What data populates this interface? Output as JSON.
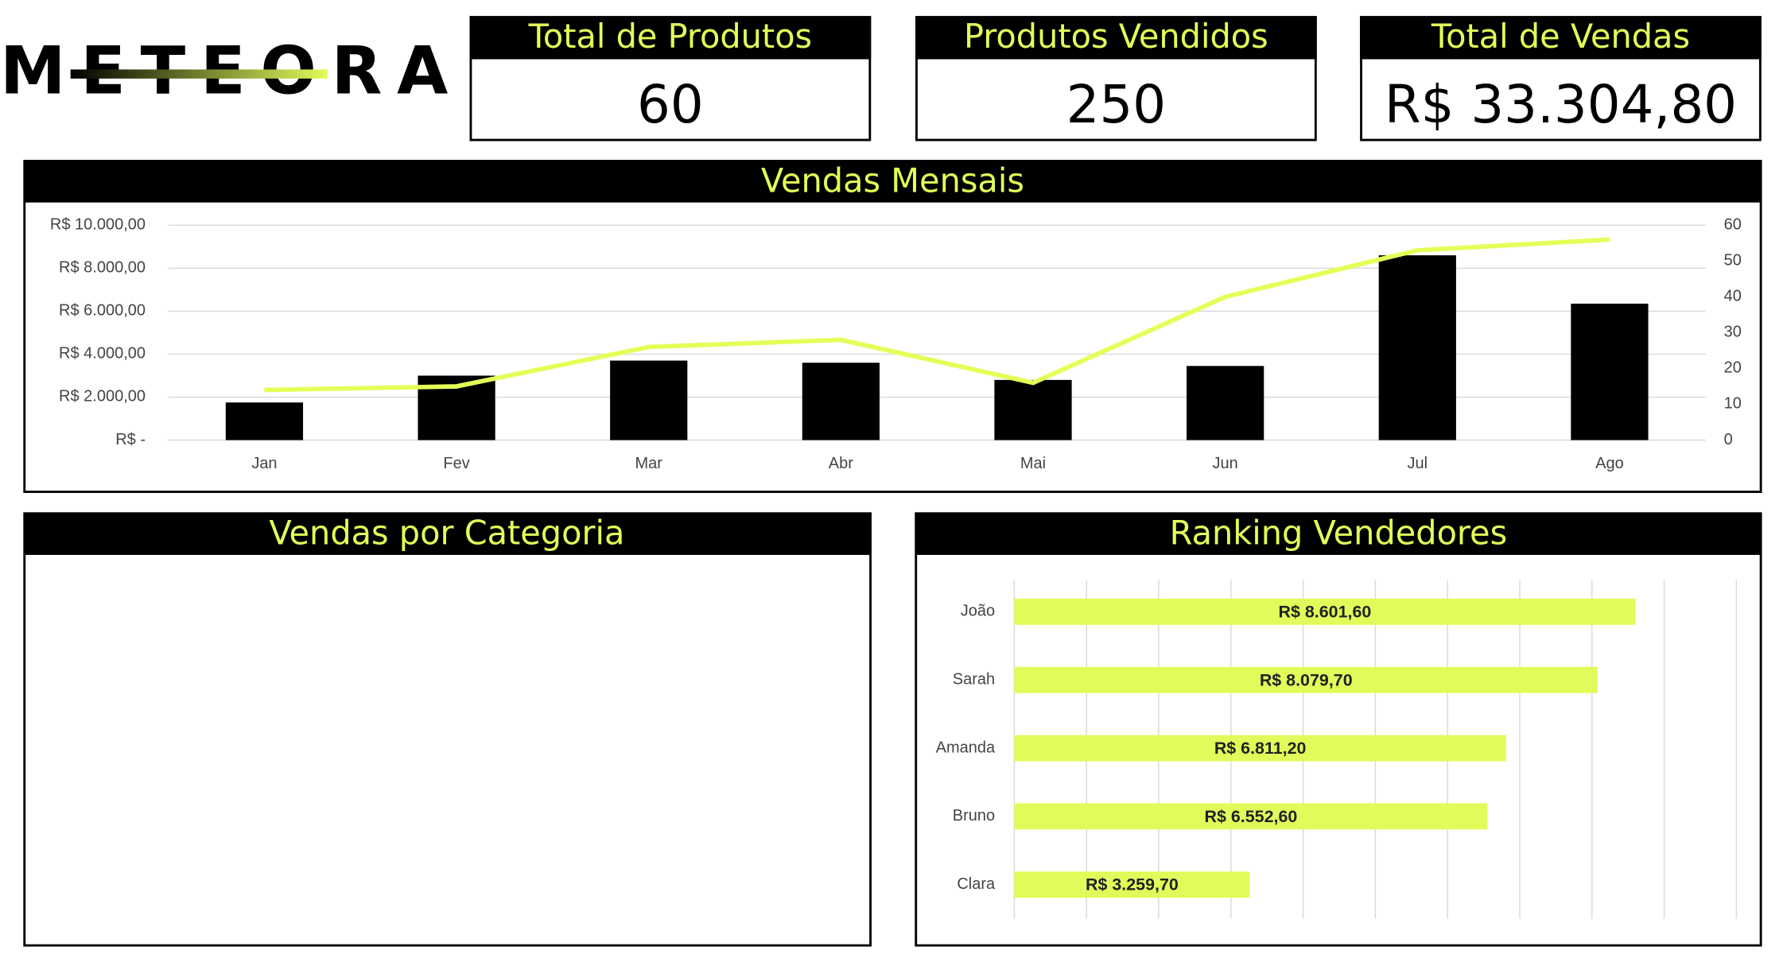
{
  "header": {
    "logo": "METEORA"
  },
  "kpis": [
    {
      "title": "Total de Produtos",
      "value": "60"
    },
    {
      "title": "Produtos Vendidos",
      "value": "250"
    },
    {
      "title": "Total de Vendas",
      "value": "R$ 33.304,80"
    }
  ],
  "panels": {
    "category_title": "Vendas por Categoria"
  },
  "chart_data": [
    {
      "type": "combo",
      "title": "Vendas Mensais",
      "categories": [
        "Jan",
        "Fev",
        "Mar",
        "Abr",
        "Mai",
        "Jun",
        "Jul",
        "Ago"
      ],
      "series": [
        {
          "type": "bar",
          "color": "#000000",
          "values": [
            1750,
            3000,
            3700,
            3600,
            2800,
            3450,
            8600,
            6350
          ]
        },
        {
          "type": "line",
          "axis": "y2",
          "color": "#e4ff57",
          "values": [
            14,
            15,
            26,
            28,
            16,
            40,
            53,
            56
          ]
        }
      ],
      "ylim": [
        0,
        10000
      ],
      "yticks": [
        {
          "value": 0,
          "label": "R$ -"
        },
        {
          "value": 2000,
          "label": "R$ 2.000,00"
        },
        {
          "value": 4000,
          "label": "R$ 4.000,00"
        },
        {
          "value": 6000,
          "label": "R$ 6.000,00"
        },
        {
          "value": 8000,
          "label": "R$ 8.000,00"
        },
        {
          "value": 10000,
          "label": "R$ 10.000,00"
        }
      ],
      "y2lim": [
        0,
        60
      ],
      "y2ticks": [
        0,
        10,
        20,
        30,
        40,
        50,
        60
      ],
      "grid": true
    },
    {
      "type": "hbar",
      "title": "Ranking Vendedores",
      "categories": [
        "João",
        "Sarah",
        "Amanda",
        "Bruno",
        "Clara"
      ],
      "values": [
        8601.6,
        8079.7,
        6811.2,
        6552.6,
        3259.7
      ],
      "value_labels": [
        "R$ 8.601,60",
        "R$ 8.079,70",
        "R$ 6.811,20",
        "R$ 6.552,60",
        "R$ 3.259,70"
      ],
      "color": "#e1fc5a",
      "xlim": [
        0,
        10000
      ],
      "xticks": [
        0,
        1000,
        2000,
        3000,
        4000,
        5000,
        6000,
        7000,
        8000,
        9000,
        10000
      ],
      "grid": true
    }
  ]
}
